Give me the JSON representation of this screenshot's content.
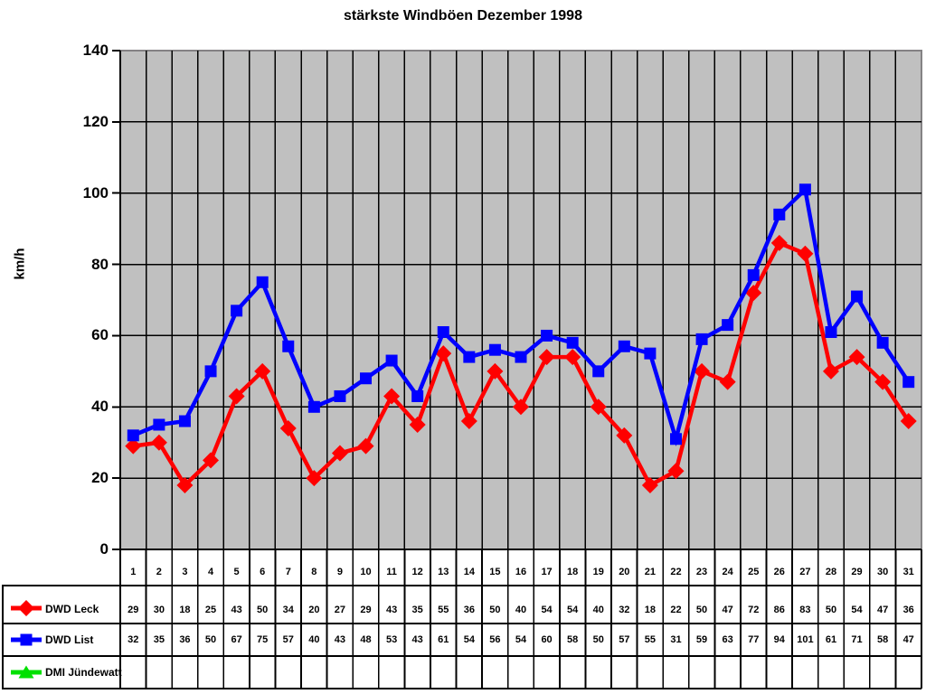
{
  "chart_data": {
    "type": "line",
    "title": "stärkste Windböen Dezember 1998",
    "xlabel": "",
    "ylabel": "km/h",
    "ylim": [
      0,
      140
    ],
    "yticks": [
      0,
      20,
      40,
      60,
      80,
      100,
      120,
      140
    ],
    "grid": true,
    "legend_position": "bottom-left-table",
    "plot_background": "#c0c0c0",
    "grid_color": "#000000",
    "plot_border_color": "#848284",
    "categories": [
      1,
      2,
      3,
      4,
      5,
      6,
      7,
      8,
      9,
      10,
      11,
      12,
      13,
      14,
      15,
      16,
      17,
      18,
      19,
      20,
      21,
      22,
      23,
      24,
      25,
      26,
      27,
      28,
      29,
      30,
      31
    ],
    "series": [
      {
        "name": "DWD Leck",
        "color": "#ff0000",
        "marker": "diamond",
        "values": [
          29,
          30,
          18,
          25,
          43,
          50,
          34,
          20,
          27,
          29,
          43,
          35,
          55,
          36,
          50,
          40,
          54,
          54,
          40,
          32,
          18,
          22,
          50,
          47,
          72,
          86,
          83,
          50,
          54,
          47,
          36
        ]
      },
      {
        "name": "DWD List",
        "color": "#0000ff",
        "marker": "square",
        "values": [
          32,
          35,
          36,
          50,
          67,
          75,
          57,
          40,
          43,
          48,
          53,
          43,
          61,
          54,
          56,
          54,
          60,
          58,
          50,
          57,
          55,
          31,
          59,
          63,
          77,
          94,
          101,
          61,
          71,
          58,
          47
        ]
      },
      {
        "name": "DMI Jündewatt",
        "color": "#00e000",
        "marker": "triangle",
        "values": []
      }
    ]
  }
}
